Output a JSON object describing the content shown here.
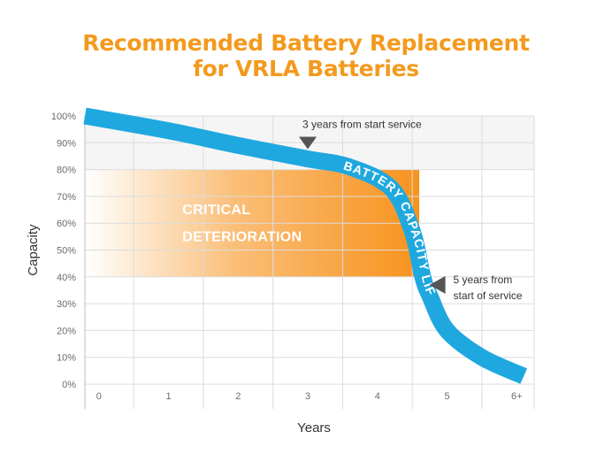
{
  "title_line1": "Recommended Battery Replacement",
  "title_line2": "for VRLA Batteries",
  "colors": {
    "title": "#f39a1e",
    "curve": "#1fa8e0",
    "critical_zone": "#f7931e",
    "grid": "#dcdcdc",
    "marker": "#555555"
  },
  "chart_data": {
    "type": "line",
    "xlabel": "Years",
    "ylabel": "Capacity",
    "x_ticks": [
      "0",
      "1",
      "2",
      "3",
      "4",
      "5",
      "6+"
    ],
    "y_ticks": [
      "0%",
      "10%",
      "20%",
      "30%",
      "40%",
      "50%",
      "60%",
      "70%",
      "80%",
      "90%",
      "100%"
    ],
    "xlim": [
      -0.2,
      6.25
    ],
    "ylim": [
      0,
      100
    ],
    "grid": true,
    "series": [
      {
        "name": "BATTERY CAPACITY LIFE CYCLE",
        "x": [
          -0.2,
          1,
          2,
          3,
          3.6,
          4.2,
          4.5,
          4.65,
          4.75,
          5,
          5.5,
          6.1
        ],
        "y": [
          100,
          94.5,
          89,
          84,
          81,
          73,
          57,
          40,
          33,
          20,
          10,
          3
        ]
      }
    ],
    "bands": [
      {
        "label": "CRITICAL DETERIORATION",
        "y_range": [
          40,
          80
        ],
        "x_range": [
          -0.2,
          4.6
        ]
      }
    ],
    "annotations": [
      {
        "text": "3 years from start service",
        "x": 3,
        "y": 84
      },
      {
        "text_lines": [
          "5 years from",
          "start of service"
        ],
        "x": 5,
        "y": 37
      }
    ]
  }
}
